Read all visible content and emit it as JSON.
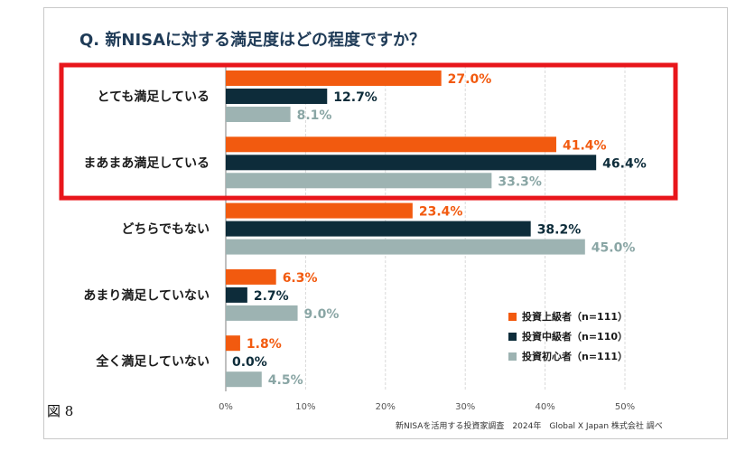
{
  "chart_data": {
    "type": "bar",
    "orientation": "horizontal",
    "title": "Q. 新NISAに対する満足度はどの程度ですか？",
    "categories": [
      "とても満足している",
      "まあまあ満足している",
      "どちらでもない",
      "あまり満足していない",
      "全く満足していない"
    ],
    "series": [
      {
        "name": "投資上級者（n=111）",
        "color": "#f25a0f",
        "values": [
          27.0,
          41.4,
          23.4,
          6.3,
          1.8
        ]
      },
      {
        "name": "投資中級者（n=110）",
        "color": "#0d2c3a",
        "values": [
          12.7,
          46.4,
          38.2,
          2.7,
          0.0
        ]
      },
      {
        "name": "投資初心者（n=111）",
        "color": "#9db3b2",
        "values": [
          8.1,
          33.3,
          45.0,
          9.0,
          4.5
        ]
      }
    ],
    "xticks": [
      "0%",
      "10%",
      "20%",
      "30%",
      "40%",
      "50%"
    ],
    "xlim": [
      0,
      50
    ],
    "value_suffix": "%",
    "legend_position": "bottom-right",
    "grid": true,
    "highlight_categories": [
      "とても満足している",
      "まあまあ満足している"
    ],
    "highlight_color": "#e8161b",
    "source": "新NISAを活用する投資家調査　2024年　Global X Japan 株式会社 調べ"
  },
  "figure_label": "図 8"
}
